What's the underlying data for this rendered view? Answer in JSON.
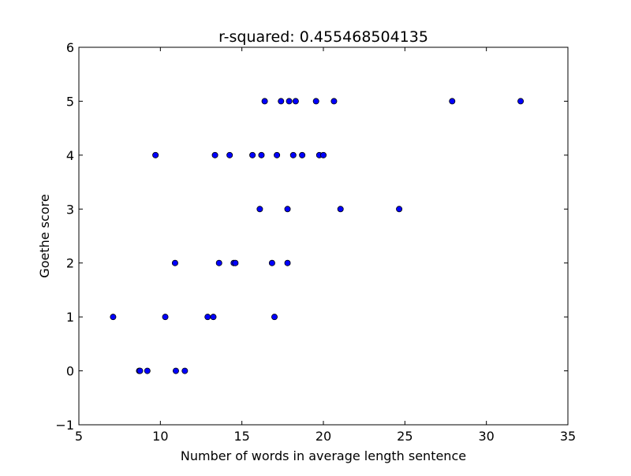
{
  "chart_data": {
    "type": "scatter",
    "title": "r-squared: 0.455468504135",
    "xlabel": "Number of words in average length sentence",
    "ylabel": "Goethe score",
    "xlim": [
      5,
      35
    ],
    "ylim": [
      -1,
      6
    ],
    "xticks": [
      "5",
      "10",
      "15",
      "20",
      "25",
      "30",
      "35"
    ],
    "yticks": [
      "−1",
      "0",
      "1",
      "2",
      "3",
      "4",
      "5",
      "6"
    ],
    "grid": false,
    "legend": "none",
    "marker_color": "#0000ff",
    "marker_edge": "#000000",
    "points": [
      {
        "x": 7.1,
        "y": 1
      },
      {
        "x": 8.7,
        "y": 0
      },
      {
        "x": 8.75,
        "y": 0
      },
      {
        "x": 9.2,
        "y": 0
      },
      {
        "x": 9.7,
        "y": 4
      },
      {
        "x": 10.3,
        "y": 1
      },
      {
        "x": 10.9,
        "y": 2
      },
      {
        "x": 10.95,
        "y": 0
      },
      {
        "x": 11.5,
        "y": 0
      },
      {
        "x": 12.9,
        "y": 1
      },
      {
        "x": 13.25,
        "y": 1
      },
      {
        "x": 13.35,
        "y": 4
      },
      {
        "x": 13.6,
        "y": 2
      },
      {
        "x": 14.25,
        "y": 4
      },
      {
        "x": 14.5,
        "y": 2
      },
      {
        "x": 14.6,
        "y": 2
      },
      {
        "x": 15.65,
        "y": 4
      },
      {
        "x": 16.1,
        "y": 3
      },
      {
        "x": 16.2,
        "y": 4
      },
      {
        "x": 16.4,
        "y": 5
      },
      {
        "x": 16.85,
        "y": 2
      },
      {
        "x": 17.0,
        "y": 1
      },
      {
        "x": 17.15,
        "y": 4
      },
      {
        "x": 17.4,
        "y": 5
      },
      {
        "x": 17.8,
        "y": 2
      },
      {
        "x": 17.8,
        "y": 3
      },
      {
        "x": 17.9,
        "y": 5
      },
      {
        "x": 18.15,
        "y": 4
      },
      {
        "x": 18.3,
        "y": 5
      },
      {
        "x": 18.7,
        "y": 4
      },
      {
        "x": 19.55,
        "y": 5
      },
      {
        "x": 19.75,
        "y": 4
      },
      {
        "x": 20.0,
        "y": 4
      },
      {
        "x": 20.65,
        "y": 5
      },
      {
        "x": 21.05,
        "y": 3
      },
      {
        "x": 24.65,
        "y": 3
      },
      {
        "x": 27.9,
        "y": 5
      },
      {
        "x": 32.1,
        "y": 5
      }
    ]
  }
}
